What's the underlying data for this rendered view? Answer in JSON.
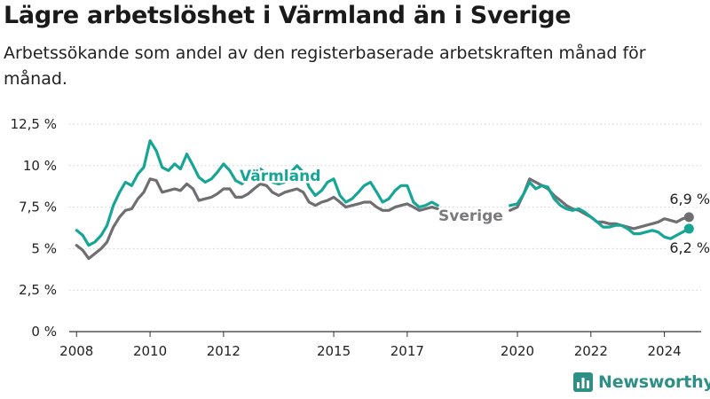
{
  "header": {
    "title": "Lägre arbetslöshet i Värmland än i Sverige",
    "subtitle": "Arbetssökande som andel av den registerbaserade arbetskraften månad för månad."
  },
  "brand": {
    "name": "Newsworthy",
    "icon": "bar-chart-icon",
    "color": "#2e8f86"
  },
  "chart_data": {
    "type": "line",
    "title": "Lägre arbetslöshet i Värmland än i Sverige",
    "xlabel": "",
    "ylabel": "",
    "ylim": [
      0,
      12.5
    ],
    "xlim": [
      2007.8,
      2025.0
    ],
    "yticks": [
      0,
      2.5,
      5,
      7.5,
      10,
      12.5
    ],
    "ytick_labels": [
      "0 %",
      "2,5 %",
      "5 %",
      "7,5 %",
      "10 %",
      "12,5 %"
    ],
    "xticks": [
      2008,
      2010,
      2012,
      2015,
      2017,
      2020,
      2022,
      2024
    ],
    "xtick_labels": [
      "2008",
      "2010",
      "2012",
      "2015",
      "2017",
      "2020",
      "2022",
      "2024"
    ],
    "grid": "horizontal",
    "legend": "inline labels",
    "series": [
      {
        "name": "Värmland",
        "color": "#17a596",
        "end_label": "6,2 %",
        "points": [
          [
            2008.0,
            6.1
          ],
          [
            2008.17,
            5.8
          ],
          [
            2008.33,
            5.2
          ],
          [
            2008.5,
            5.4
          ],
          [
            2008.67,
            5.8
          ],
          [
            2008.83,
            6.4
          ],
          [
            2009.0,
            7.6
          ],
          [
            2009.17,
            8.4
          ],
          [
            2009.33,
            9.0
          ],
          [
            2009.5,
            8.8
          ],
          [
            2009.67,
            9.5
          ],
          [
            2009.83,
            9.9
          ],
          [
            2010.0,
            11.5
          ],
          [
            2010.17,
            10.9
          ],
          [
            2010.33,
            9.9
          ],
          [
            2010.5,
            9.7
          ],
          [
            2010.67,
            10.1
          ],
          [
            2010.83,
            9.8
          ],
          [
            2011.0,
            10.7
          ],
          [
            2011.17,
            10.0
          ],
          [
            2011.33,
            9.3
          ],
          [
            2011.5,
            9.0
          ],
          [
            2011.67,
            9.2
          ],
          [
            2011.83,
            9.6
          ],
          [
            2012.0,
            10.1
          ],
          [
            2012.17,
            9.7
          ],
          [
            2012.33,
            9.1
          ],
          [
            2012.5,
            8.9
          ],
          [
            2012.67,
            9.3
          ],
          [
            2012.83,
            9.6
          ],
          [
            2013.0,
            9.8
          ],
          [
            2013.17,
            9.5
          ],
          [
            2013.33,
            9.0
          ],
          [
            2013.5,
            8.9
          ],
          [
            2013.67,
            9.0
          ],
          [
            2013.83,
            9.6
          ],
          [
            2014.0,
            10.0
          ],
          [
            2014.17,
            9.6
          ],
          [
            2014.33,
            8.7
          ],
          [
            2014.5,
            8.2
          ],
          [
            2014.67,
            8.5
          ],
          [
            2014.83,
            9.0
          ],
          [
            2015.0,
            9.2
          ],
          [
            2015.17,
            8.2
          ],
          [
            2015.33,
            7.8
          ],
          [
            2015.5,
            8.0
          ],
          [
            2015.67,
            8.4
          ],
          [
            2015.83,
            8.8
          ],
          [
            2016.0,
            9.0
          ],
          [
            2016.17,
            8.4
          ],
          [
            2016.33,
            7.8
          ],
          [
            2016.5,
            8.0
          ],
          [
            2016.67,
            8.5
          ],
          [
            2016.83,
            8.8
          ],
          [
            2017.0,
            8.8
          ],
          [
            2017.17,
            7.8
          ],
          [
            2017.33,
            7.5
          ],
          [
            2017.5,
            7.6
          ],
          [
            2017.67,
            7.8
          ],
          [
            2017.83,
            7.6
          ],
          [
            2019.8,
            7.6
          ],
          [
            2020.0,
            7.7
          ],
          [
            2020.17,
            8.3
          ],
          [
            2020.33,
            9.0
          ],
          [
            2020.5,
            8.6
          ],
          [
            2020.67,
            8.8
          ],
          [
            2020.83,
            8.7
          ],
          [
            2021.0,
            8.0
          ],
          [
            2021.17,
            7.6
          ],
          [
            2021.33,
            7.4
          ],
          [
            2021.5,
            7.3
          ],
          [
            2021.67,
            7.4
          ],
          [
            2021.83,
            7.2
          ],
          [
            2022.0,
            6.9
          ],
          [
            2022.17,
            6.6
          ],
          [
            2022.33,
            6.3
          ],
          [
            2022.5,
            6.3
          ],
          [
            2022.67,
            6.4
          ],
          [
            2022.83,
            6.4
          ],
          [
            2023.0,
            6.2
          ],
          [
            2023.17,
            5.9
          ],
          [
            2023.33,
            5.9
          ],
          [
            2023.5,
            6.0
          ],
          [
            2023.67,
            6.1
          ],
          [
            2023.83,
            6.0
          ],
          [
            2024.0,
            5.7
          ],
          [
            2024.17,
            5.6
          ],
          [
            2024.33,
            5.8
          ],
          [
            2024.5,
            6.0
          ],
          [
            2024.67,
            6.2
          ]
        ]
      },
      {
        "name": "Sverige",
        "color": "#6f6f72",
        "end_label": "6,9 %",
        "points": [
          [
            2008.0,
            5.2
          ],
          [
            2008.17,
            4.9
          ],
          [
            2008.33,
            4.4
          ],
          [
            2008.5,
            4.7
          ],
          [
            2008.67,
            5.0
          ],
          [
            2008.83,
            5.4
          ],
          [
            2009.0,
            6.3
          ],
          [
            2009.17,
            6.9
          ],
          [
            2009.33,
            7.3
          ],
          [
            2009.5,
            7.4
          ],
          [
            2009.67,
            8.0
          ],
          [
            2009.83,
            8.4
          ],
          [
            2010.0,
            9.2
          ],
          [
            2010.17,
            9.1
          ],
          [
            2010.33,
            8.4
          ],
          [
            2010.5,
            8.5
          ],
          [
            2010.67,
            8.6
          ],
          [
            2010.83,
            8.5
          ],
          [
            2011.0,
            8.9
          ],
          [
            2011.17,
            8.6
          ],
          [
            2011.33,
            7.9
          ],
          [
            2011.5,
            8.0
          ],
          [
            2011.67,
            8.1
          ],
          [
            2011.83,
            8.3
          ],
          [
            2012.0,
            8.6
          ],
          [
            2012.17,
            8.6
          ],
          [
            2012.33,
            8.1
          ],
          [
            2012.5,
            8.1
          ],
          [
            2012.67,
            8.3
          ],
          [
            2012.83,
            8.6
          ],
          [
            2013.0,
            8.9
          ],
          [
            2013.17,
            8.8
          ],
          [
            2013.33,
            8.4
          ],
          [
            2013.5,
            8.2
          ],
          [
            2013.67,
            8.4
          ],
          [
            2013.83,
            8.5
          ],
          [
            2014.0,
            8.6
          ],
          [
            2014.17,
            8.4
          ],
          [
            2014.33,
            7.8
          ],
          [
            2014.5,
            7.6
          ],
          [
            2014.67,
            7.8
          ],
          [
            2014.83,
            7.9
          ],
          [
            2015.0,
            8.1
          ],
          [
            2015.17,
            7.8
          ],
          [
            2015.33,
            7.5
          ],
          [
            2015.5,
            7.6
          ],
          [
            2015.67,
            7.7
          ],
          [
            2015.83,
            7.8
          ],
          [
            2016.0,
            7.8
          ],
          [
            2016.17,
            7.5
          ],
          [
            2016.33,
            7.3
          ],
          [
            2016.5,
            7.3
          ],
          [
            2016.67,
            7.5
          ],
          [
            2016.83,
            7.6
          ],
          [
            2017.0,
            7.7
          ],
          [
            2017.17,
            7.5
          ],
          [
            2017.33,
            7.3
          ],
          [
            2017.5,
            7.4
          ],
          [
            2017.67,
            7.5
          ],
          [
            2017.83,
            7.4
          ],
          [
            2019.8,
            7.3
          ],
          [
            2020.0,
            7.5
          ],
          [
            2020.17,
            8.3
          ],
          [
            2020.33,
            9.2
          ],
          [
            2020.5,
            9.0
          ],
          [
            2020.67,
            8.8
          ],
          [
            2020.83,
            8.6
          ],
          [
            2021.0,
            8.2
          ],
          [
            2021.17,
            7.9
          ],
          [
            2021.33,
            7.6
          ],
          [
            2021.5,
            7.4
          ],
          [
            2021.67,
            7.3
          ],
          [
            2021.83,
            7.1
          ],
          [
            2022.0,
            6.9
          ],
          [
            2022.17,
            6.6
          ],
          [
            2022.33,
            6.6
          ],
          [
            2022.5,
            6.5
          ],
          [
            2022.67,
            6.5
          ],
          [
            2022.83,
            6.4
          ],
          [
            2023.0,
            6.3
          ],
          [
            2023.17,
            6.2
          ],
          [
            2023.33,
            6.3
          ],
          [
            2023.5,
            6.4
          ],
          [
            2023.67,
            6.5
          ],
          [
            2023.83,
            6.6
          ],
          [
            2024.0,
            6.8
          ],
          [
            2024.17,
            6.7
          ],
          [
            2024.33,
            6.6
          ],
          [
            2024.5,
            6.8
          ],
          [
            2024.67,
            6.9
          ]
        ]
      }
    ]
  }
}
